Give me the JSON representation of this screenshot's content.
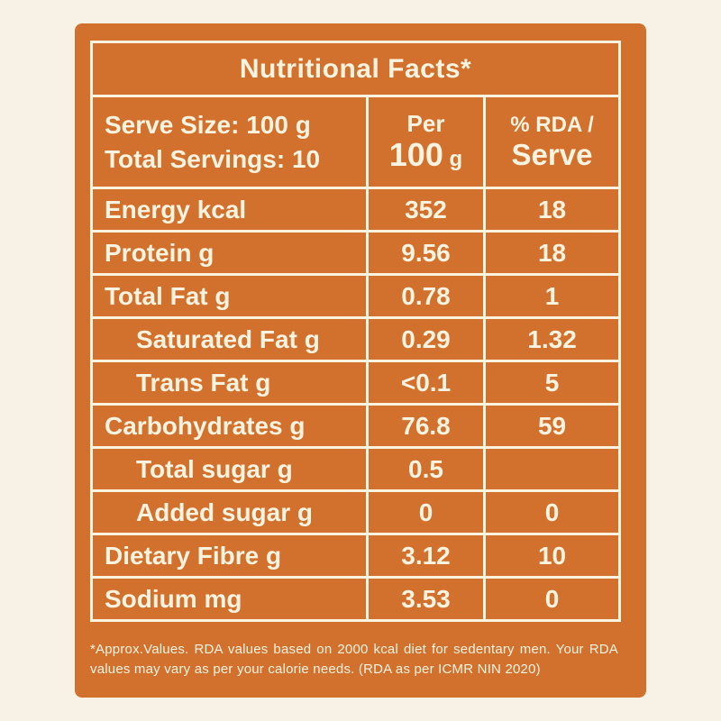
{
  "colors": {
    "page_background": "#f7f2e5",
    "panel_background": "#d1712d",
    "text_and_borders": "#faf3e0"
  },
  "title": "Nutritional Facts*",
  "header": {
    "serve_size": "Serve Size: 100 g",
    "total_servings": "Total Servings: 10",
    "per_label": "Per",
    "per_value": "100",
    "per_unit": "g",
    "rda_line1": "% RDA /",
    "rda_line2": "Serve"
  },
  "rows": [
    {
      "label": "Energy kcal",
      "per_100g": "352",
      "rda": "18"
    },
    {
      "label": "Protein g",
      "per_100g": "9.56",
      "rda": "18"
    },
    {
      "label": "Total Fat g",
      "per_100g": "0.78",
      "rda": "1"
    },
    {
      "label": "Saturated Fat g",
      "per_100g": "0.29",
      "rda": "1.32"
    },
    {
      "label": "Trans Fat g",
      "per_100g": "<0.1",
      "rda": "5"
    },
    {
      "label": "Carbohydrates g",
      "per_100g": "76.8",
      "rda": "59"
    },
    {
      "label": "Total sugar g",
      "per_100g": "0.5",
      "rda": ""
    },
    {
      "label": "Added sugar g",
      "per_100g": "0",
      "rda": "0"
    },
    {
      "label": "Dietary Fibre g",
      "per_100g": "3.12",
      "rda": "10"
    },
    {
      "label": "Sodium mg",
      "per_100g": "3.53",
      "rda": "0"
    }
  ],
  "footnote": "*Approx.Values. RDA values based on 2000 kcal diet for sedentary men. Your RDA values may vary as per your calorie needs. (RDA as per ICMR NIN 2020)"
}
